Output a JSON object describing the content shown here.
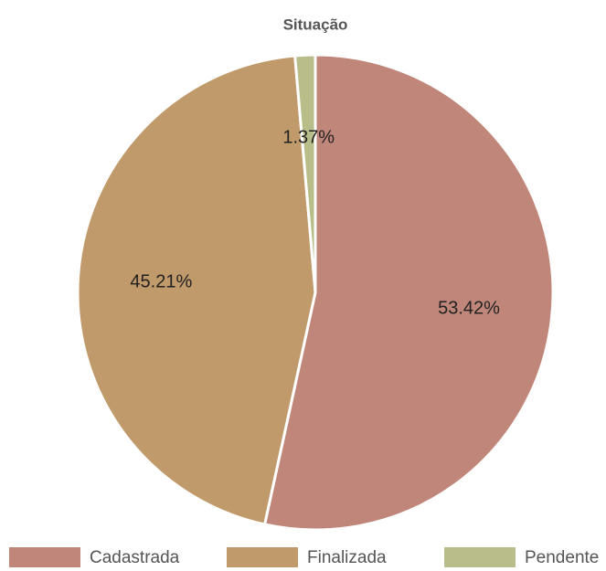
{
  "chart_data": {
    "type": "pie",
    "title": "Situação",
    "categories": [
      "Cadastrada",
      "Finalizada",
      "Pendente"
    ],
    "values": [
      53.42,
      45.21,
      1.37
    ],
    "value_labels": [
      "53.42%",
      "45.21%",
      "1.37%"
    ],
    "colors": [
      "#c0867a",
      "#c09a6a",
      "#b8bd8a"
    ],
    "legend": "bottom"
  }
}
